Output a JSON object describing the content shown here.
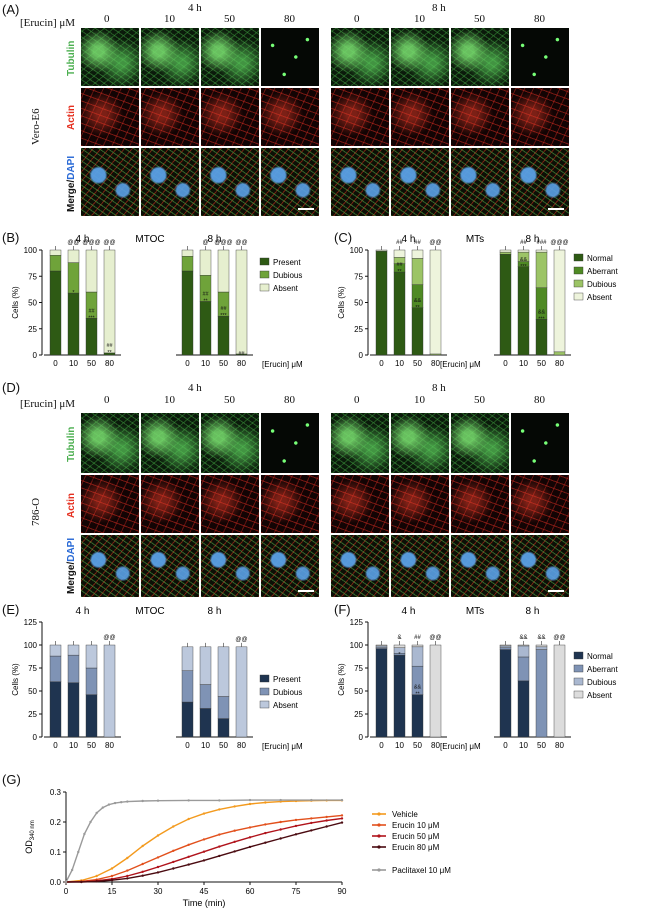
{
  "panels": {
    "A": "(A)",
    "B": "(B)",
    "C": "(C)",
    "D": "(D)",
    "E": "(E)",
    "F": "(F)",
    "G": "(G)"
  },
  "conc_header": "[Erucin]  μM",
  "concentrations": [
    "0",
    "10",
    "50",
    "80"
  ],
  "times": [
    "4 h",
    "8 h"
  ],
  "stain_labels": {
    "tubulin": "Tubulin",
    "actin": "Actin",
    "merge": "Merge/",
    "dapi": "DAPI"
  },
  "cell_lines": {
    "A": "Vero-E6",
    "D": "786-O"
  },
  "colors": {
    "tubulin": "#4caf50",
    "actin": "#e53020",
    "dapi": "#2a6ad6"
  },
  "chart_data": [
    {
      "panel": "B",
      "type": "bar",
      "title": "MTOC",
      "stacked": true,
      "ylabel": "Cells (%)",
      "xlabel": "[Erucin]  μM",
      "ylim": [
        0,
        100
      ],
      "yticks": [
        "0",
        "25",
        "50",
        "75",
        "100"
      ],
      "groups": [
        "4 h",
        "8 h"
      ],
      "categories": [
        "0",
        "10",
        "50",
        "80"
      ],
      "series": [
        {
          "name": "Present",
          "color": "#2e5a14",
          "values_4h": [
            80,
            59,
            35,
            2
          ],
          "values_8h": [
            80,
            51,
            37,
            1
          ]
        },
        {
          "name": "Dubious",
          "color": "#6fa33a",
          "values_4h": [
            15,
            29,
            25,
            0
          ],
          "values_8h": [
            14,
            25,
            23,
            0
          ]
        },
        {
          "name": "Absent",
          "color": "#e6efcf",
          "values_4h": [
            5,
            12,
            40,
            98
          ],
          "values_8h": [
            6,
            24,
            40,
            99
          ]
        }
      ],
      "annotations_4h": [
        "",
        "*",
        "##\n***",
        "##\n**"
      ],
      "top_marks_4h": [
        "",
        "@@",
        "@@@",
        "@@"
      ],
      "annotations_8h": [
        "",
        "##\n**",
        "##\n***",
        "##"
      ],
      "top_marks_8h": [
        "",
        "@",
        "@@@",
        "@@"
      ]
    },
    {
      "panel": "C",
      "type": "bar",
      "title": "MTs",
      "stacked": true,
      "ylabel": "Cells (%)",
      "xlabel": "[Erucin]  μM",
      "ylim": [
        0,
        100
      ],
      "yticks": [
        "0",
        "25",
        "50",
        "75",
        "100"
      ],
      "groups": [
        "4 h",
        "8 h"
      ],
      "categories": [
        "0",
        "10",
        "50",
        "80"
      ],
      "series": [
        {
          "name": "Normal",
          "color": "#2e5a14",
          "values_4h": [
            99,
            79,
            45,
            0
          ],
          "values_8h": [
            96,
            84,
            34,
            0
          ]
        },
        {
          "name": "Aberrant",
          "color": "#4f8a24",
          "values_4h": [
            0,
            8,
            22,
            0
          ],
          "values_8h": [
            0,
            5,
            30,
            0
          ]
        },
        {
          "name": "Dubious",
          "color": "#9cc466",
          "values_4h": [
            0,
            6,
            25,
            1
          ],
          "values_8h": [
            2,
            9,
            34,
            3
          ]
        },
        {
          "name": "Absent",
          "color": "#eef4dc",
          "values_4h": [
            1,
            7,
            8,
            99
          ],
          "values_8h": [
            2,
            2,
            2,
            97
          ]
        }
      ],
      "annotations_4h": [
        "",
        "##\n**",
        "&&\n**",
        ""
      ],
      "top_marks_4h": [
        "",
        "##",
        "##",
        "@@"
      ],
      "annotations_8h": [
        "",
        "&&\n***",
        "&&\n***",
        ""
      ],
      "top_marks_8h": [
        "",
        "##",
        "###",
        "@@@"
      ]
    },
    {
      "panel": "E",
      "type": "bar",
      "title": "MTOC",
      "stacked": true,
      "ylabel": "Cells (%)",
      "xlabel": "[Erucin]  μM",
      "ylim": [
        0,
        125
      ],
      "yticks": [
        "0",
        "25",
        "50",
        "75",
        "100",
        "125"
      ],
      "groups": [
        "4 h",
        "8 h"
      ],
      "categories": [
        "0",
        "10",
        "50",
        "80"
      ],
      "series": [
        {
          "name": "Present",
          "color": "#1f3450",
          "values_4h": [
            60,
            59,
            46,
            0
          ],
          "values_8h": [
            38,
            31,
            20,
            0
          ]
        },
        {
          "name": "Dubious",
          "color": "#7f93b5",
          "values_4h": [
            28,
            30,
            29,
            0
          ],
          "values_8h": [
            34,
            26,
            24,
            0
          ]
        },
        {
          "name": "Absent",
          "color": "#bcc8dc",
          "values_4h": [
            12,
            11,
            25,
            100
          ],
          "values_8h": [
            26,
            41,
            54,
            98
          ]
        }
      ],
      "top_marks_4h": [
        "",
        "",
        "",
        "@@"
      ],
      "top_marks_8h": [
        "",
        "",
        "",
        "@@"
      ]
    },
    {
      "panel": "F",
      "type": "bar",
      "title": "MTs",
      "stacked": true,
      "ylabel": "Cells (%)",
      "xlabel": "[Erucin]  μM",
      "ylim": [
        0,
        125
      ],
      "yticks": [
        "0",
        "25",
        "50",
        "75",
        "100",
        "125"
      ],
      "groups": [
        "4 h",
        "8 h"
      ],
      "categories": [
        "0",
        "10",
        "50",
        "80"
      ],
      "series": [
        {
          "name": "Normal",
          "color": "#1f3450",
          "values_4h": [
            96,
            89,
            46,
            0
          ],
          "values_8h": [
            95,
            61,
            0,
            0
          ]
        },
        {
          "name": "Aberrant",
          "color": "#7f93b5",
          "values_4h": [
            1,
            2,
            31,
            0
          ],
          "values_8h": [
            2,
            26,
            95,
            0
          ]
        },
        {
          "name": "Dubious",
          "color": "#aab8d0",
          "values_4h": [
            2,
            6,
            21,
            0
          ],
          "values_8h": [
            2,
            12,
            3,
            0
          ]
        },
        {
          "name": "Absent",
          "color": "#dcdcdc",
          "values_4h": [
            1,
            3,
            2,
            100
          ],
          "values_8h": [
            1,
            1,
            2,
            100
          ]
        }
      ],
      "annotations_4h": [
        "",
        "*",
        "&&\n**",
        ""
      ],
      "top_marks_4h": [
        "",
        "&",
        "##",
        "@@"
      ],
      "annotations_8h": [
        "",
        "",
        "",
        ""
      ],
      "top_marks_8h": [
        "",
        "&&",
        "&&",
        "@@"
      ]
    },
    {
      "panel": "G",
      "type": "line",
      "ylabel": "OD340 nm",
      "ylabel_main": "OD",
      "ylabel_sub": "340 nm",
      "xlabel": "Time (min)",
      "xlim": [
        0,
        90
      ],
      "ylim": [
        0,
        0.3
      ],
      "xticks": [
        "0",
        "15",
        "30",
        "45",
        "60",
        "75",
        "90"
      ],
      "yticks": [
        "0.0",
        "0.1",
        "0.2",
        "0.3"
      ],
      "series": [
        {
          "name": "Vehicle",
          "color": "#f39a1e",
          "x": [
            0,
            5,
            10,
            15,
            20,
            25,
            30,
            35,
            40,
            45,
            50,
            55,
            60,
            65,
            70,
            75,
            80,
            85,
            90
          ],
          "y": [
            0.0,
            0.005,
            0.02,
            0.045,
            0.08,
            0.12,
            0.155,
            0.185,
            0.21,
            0.228,
            0.242,
            0.252,
            0.26,
            0.265,
            0.268,
            0.27,
            0.271,
            0.272,
            0.272
          ]
        },
        {
          "name": "Erucin 10 μM",
          "color": "#e2501c",
          "x": [
            0,
            5,
            10,
            15,
            20,
            25,
            30,
            35,
            40,
            45,
            50,
            55,
            60,
            65,
            70,
            75,
            80,
            85,
            90
          ],
          "y": [
            0.0,
            0.002,
            0.008,
            0.02,
            0.038,
            0.06,
            0.082,
            0.104,
            0.124,
            0.142,
            0.158,
            0.171,
            0.182,
            0.192,
            0.2,
            0.207,
            0.212,
            0.217,
            0.222
          ]
        },
        {
          "name": "Erucin 50 μM",
          "color": "#b0131b",
          "x": [
            0,
            5,
            10,
            15,
            20,
            25,
            30,
            35,
            40,
            45,
            50,
            55,
            60,
            65,
            70,
            75,
            80,
            85,
            90
          ],
          "y": [
            0.0,
            0.001,
            0.004,
            0.01,
            0.02,
            0.034,
            0.05,
            0.067,
            0.084,
            0.101,
            0.118,
            0.134,
            0.149,
            0.163,
            0.175,
            0.187,
            0.197,
            0.205,
            0.212
          ]
        },
        {
          "name": "Erucin 80 μM",
          "color": "#4a0a10",
          "x": [
            0,
            5,
            10,
            15,
            20,
            25,
            30,
            35,
            40,
            45,
            50,
            55,
            60,
            65,
            70,
            75,
            80,
            85,
            90
          ],
          "y": [
            0.0,
            0.0,
            0.002,
            0.006,
            0.012,
            0.021,
            0.032,
            0.045,
            0.058,
            0.072,
            0.087,
            0.102,
            0.117,
            0.131,
            0.145,
            0.159,
            0.172,
            0.185,
            0.198
          ]
        },
        {
          "name": "Paclitaxel 10 μM",
          "color": "#9a9a9a",
          "x": [
            0,
            2,
            4,
            6,
            8,
            10,
            12,
            14,
            16,
            18,
            20,
            25,
            30,
            40,
            50,
            60,
            70,
            80,
            90
          ],
          "y": [
            0.0,
            0.04,
            0.1,
            0.16,
            0.2,
            0.23,
            0.248,
            0.258,
            0.263,
            0.266,
            0.268,
            0.27,
            0.271,
            0.272,
            0.272,
            0.273,
            0.273,
            0.273,
            0.273
          ]
        }
      ]
    }
  ]
}
